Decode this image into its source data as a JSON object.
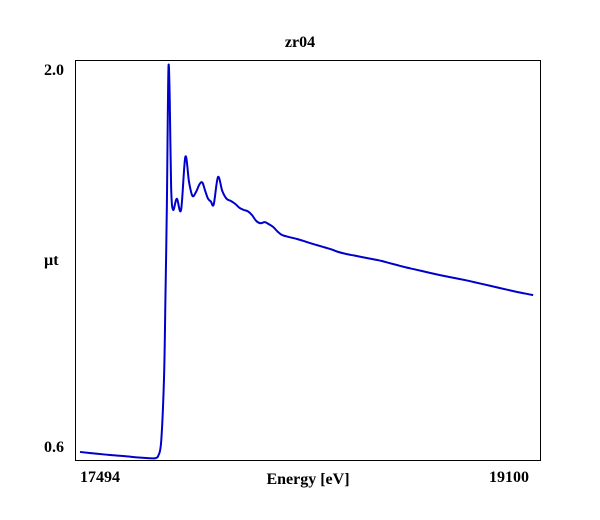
{
  "chart_data": {
    "type": "line",
    "title": "zr04",
    "xlabel": "Energy [eV]",
    "ylabel": "µt",
    "x_tick_labels": [
      "17494",
      "19100"
    ],
    "y_tick_labels": [
      "0.6",
      "2.0"
    ],
    "xlim": [
      17494,
      19100
    ],
    "ylim": [
      0.6,
      2.0
    ],
    "grid": false,
    "series": [
      {
        "color": "#0000cc",
        "x": [
          17494,
          17550,
          17600,
          17650,
          17700,
          17750,
          17760,
          17770,
          17780,
          17790,
          17795,
          17800,
          17803,
          17806,
          17810,
          17815,
          17822,
          17835,
          17850,
          17865,
          17878,
          17890,
          17903,
          17915,
          17925,
          17935,
          17945,
          17955,
          17965,
          17980,
          17995,
          18010,
          18025,
          18040,
          18055,
          18070,
          18085,
          18100,
          18115,
          18130,
          18145,
          18160,
          18175,
          18190,
          18205,
          18220,
          18240,
          18260,
          18280,
          18300,
          18320,
          18340,
          18360,
          18380,
          18400,
          18430,
          18460,
          18490,
          18520,
          18550,
          18580,
          18610,
          18640,
          18670,
          18700,
          18730,
          18760,
          18790,
          18820,
          18850,
          18880,
          18910,
          18940,
          18970,
          19000,
          19030,
          19060,
          19090
        ],
        "y": [
          0.611,
          0.605,
          0.6,
          0.596,
          0.591,
          0.588,
          0.589,
          0.598,
          0.65,
          0.88,
          1.17,
          1.5,
          1.8,
          2.0,
          1.88,
          1.56,
          1.48,
          1.52,
          1.48,
          1.67,
          1.58,
          1.53,
          1.545,
          1.572,
          1.578,
          1.548,
          1.52,
          1.51,
          1.5,
          1.598,
          1.548,
          1.52,
          1.512,
          1.502,
          1.488,
          1.48,
          1.475,
          1.461,
          1.44,
          1.432,
          1.436,
          1.428,
          1.418,
          1.402,
          1.39,
          1.385,
          1.38,
          1.375,
          1.369,
          1.362,
          1.356,
          1.35,
          1.344,
          1.338,
          1.33,
          1.322,
          1.316,
          1.31,
          1.304,
          1.298,
          1.29,
          1.282,
          1.274,
          1.267,
          1.26,
          1.253,
          1.246,
          1.24,
          1.234,
          1.228,
          1.221,
          1.214,
          1.207,
          1.2,
          1.193,
          1.186,
          1.18,
          1.174
        ]
      }
    ]
  }
}
